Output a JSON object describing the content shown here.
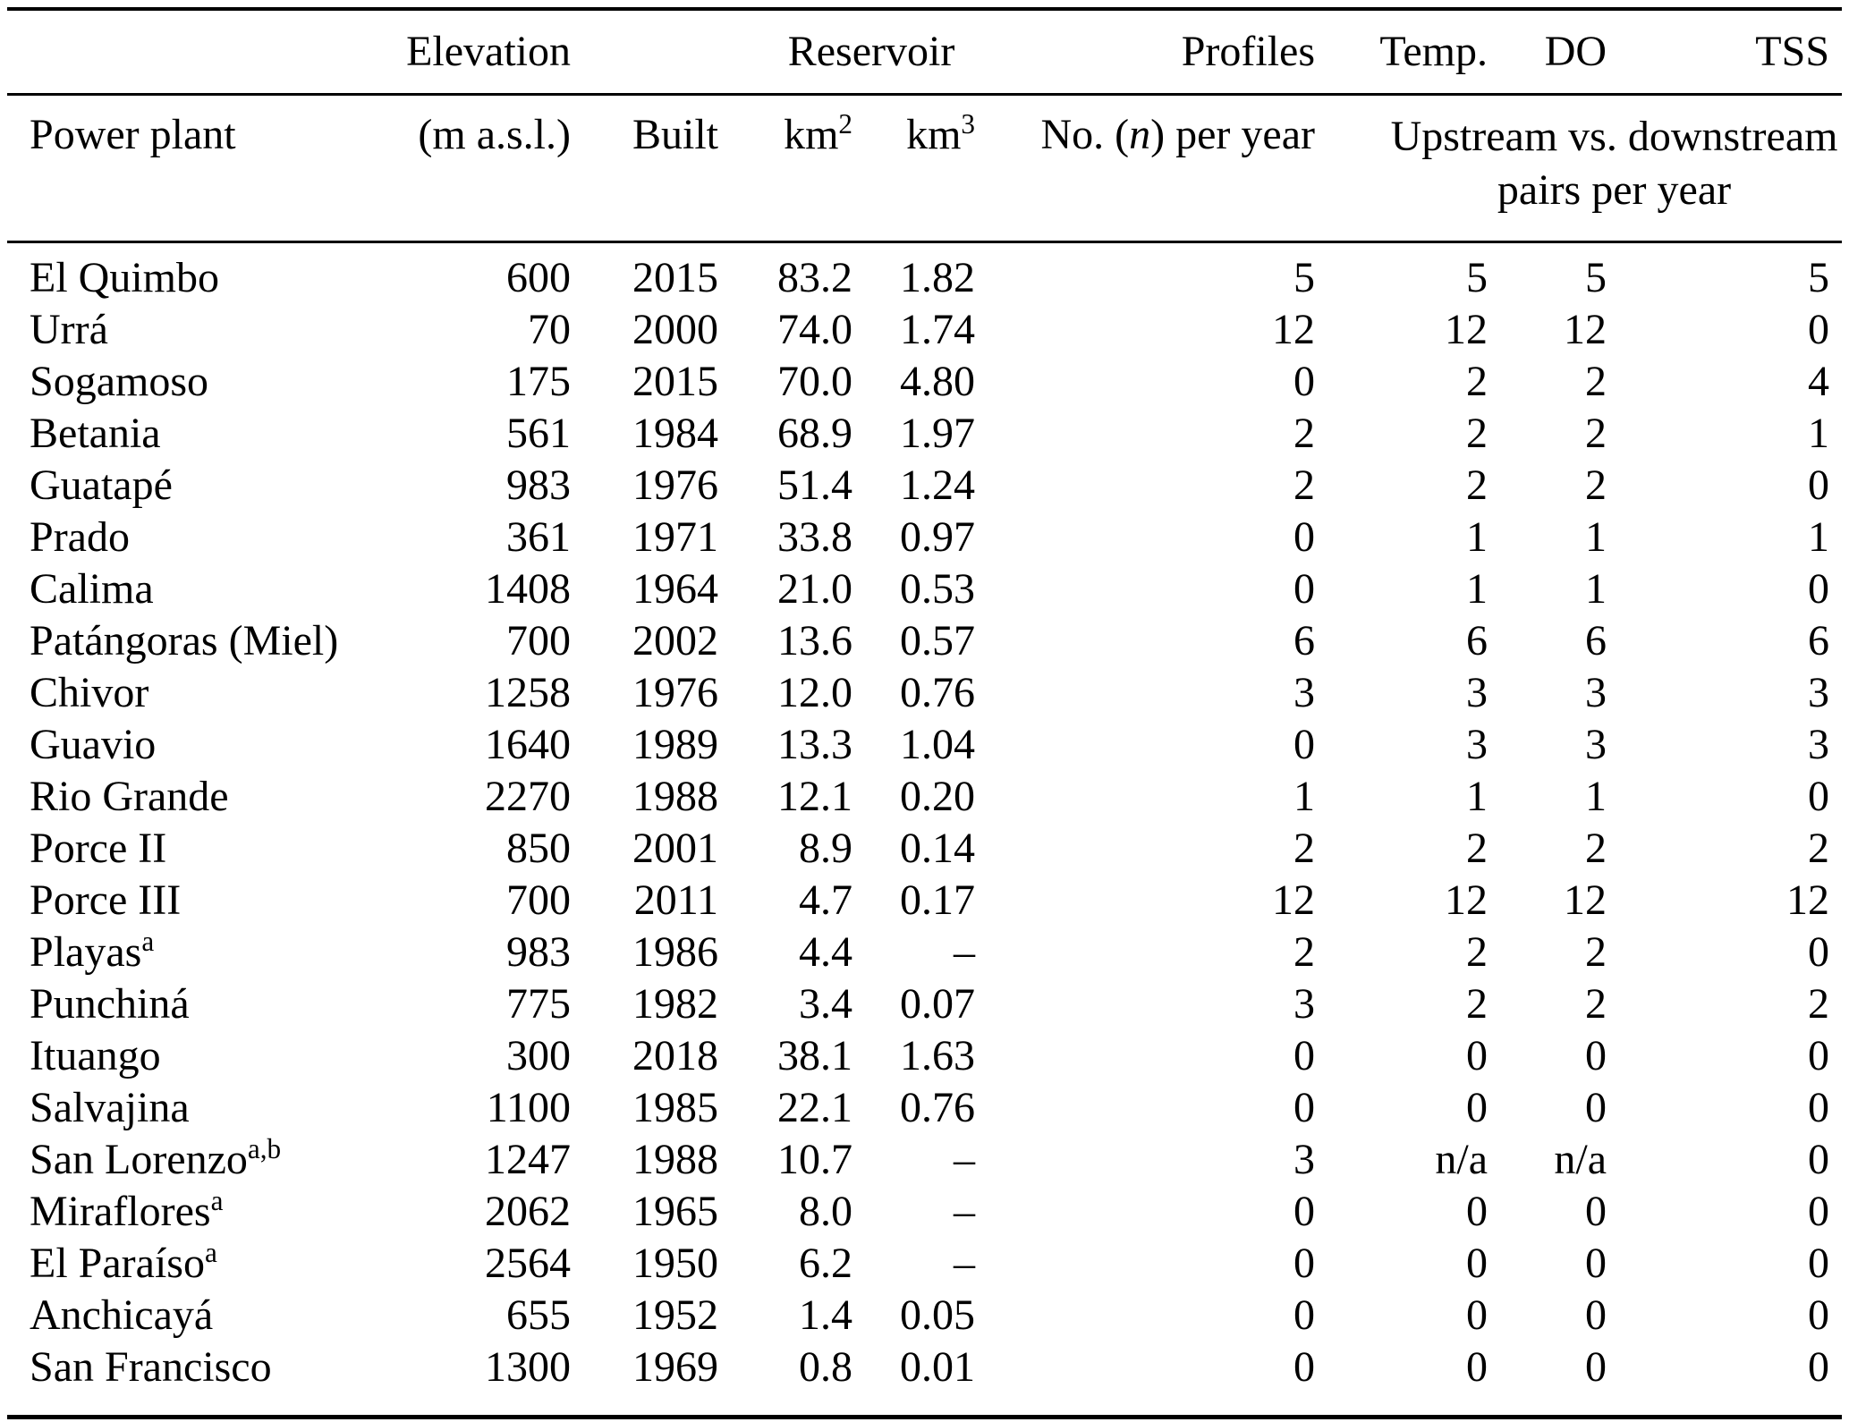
{
  "table": {
    "header_row1": {
      "elevation": "Elevation",
      "reservoir": "Reservoir",
      "profiles": "Profiles",
      "temp": "Temp.",
      "dissolved_oxygen": "DO",
      "tss": "TSS"
    },
    "header_row2": {
      "power_plant": "Power plant",
      "masl": "(m a.s.l.)",
      "built": "Built",
      "km2_base": "km",
      "km2_sup": "2",
      "km3_base": "km",
      "km3_sup": "3",
      "profiles_pre": "No. (",
      "profiles_n": "n",
      "profiles_post": ") per year",
      "updown_line1": "Upstream vs. downstream",
      "updown_line2": "pairs per year"
    },
    "rows": [
      {
        "name": "El Quimbo",
        "sup": "",
        "elevation": "600",
        "built": "2015",
        "km2": "83.2",
        "km3": "1.82",
        "profiles": "5",
        "temp": "5",
        "do": "5",
        "tss": "5"
      },
      {
        "name": "Urrá",
        "sup": "",
        "elevation": "70",
        "built": "2000",
        "km2": "74.0",
        "km3": "1.74",
        "profiles": "12",
        "temp": "12",
        "do": "12",
        "tss": "0"
      },
      {
        "name": "Sogamoso",
        "sup": "",
        "elevation": "175",
        "built": "2015",
        "km2": "70.0",
        "km3": "4.80",
        "profiles": "0",
        "temp": "2",
        "do": "2",
        "tss": "4"
      },
      {
        "name": "Betania",
        "sup": "",
        "elevation": "561",
        "built": "1984",
        "km2": "68.9",
        "km3": "1.97",
        "profiles": "2",
        "temp": "2",
        "do": "2",
        "tss": "1"
      },
      {
        "name": "Guatapé",
        "sup": "",
        "elevation": "983",
        "built": "1976",
        "km2": "51.4",
        "km3": "1.24",
        "profiles": "2",
        "temp": "2",
        "do": "2",
        "tss": "0"
      },
      {
        "name": "Prado",
        "sup": "",
        "elevation": "361",
        "built": "1971",
        "km2": "33.8",
        "km3": "0.97",
        "profiles": "0",
        "temp": "1",
        "do": "1",
        "tss": "1"
      },
      {
        "name": "Calima",
        "sup": "",
        "elevation": "1408",
        "built": "1964",
        "km2": "21.0",
        "km3": "0.53",
        "profiles": "0",
        "temp": "1",
        "do": "1",
        "tss": "0"
      },
      {
        "name": "Patángoras (Miel)",
        "sup": "",
        "elevation": "700",
        "built": "2002",
        "km2": "13.6",
        "km3": "0.57",
        "profiles": "6",
        "temp": "6",
        "do": "6",
        "tss": "6"
      },
      {
        "name": "Chivor",
        "sup": "",
        "elevation": "1258",
        "built": "1976",
        "km2": "12.0",
        "km3": "0.76",
        "profiles": "3",
        "temp": "3",
        "do": "3",
        "tss": "3"
      },
      {
        "name": "Guavio",
        "sup": "",
        "elevation": "1640",
        "built": "1989",
        "km2": "13.3",
        "km3": "1.04",
        "profiles": "0",
        "temp": "3",
        "do": "3",
        "tss": "3"
      },
      {
        "name": "Rio Grande",
        "sup": "",
        "elevation": "2270",
        "built": "1988",
        "km2": "12.1",
        "km3": "0.20",
        "profiles": "1",
        "temp": "1",
        "do": "1",
        "tss": "0"
      },
      {
        "name": "Porce II",
        "sup": "",
        "elevation": "850",
        "built": "2001",
        "km2": "8.9",
        "km3": "0.14",
        "profiles": "2",
        "temp": "2",
        "do": "2",
        "tss": "2"
      },
      {
        "name": "Porce III",
        "sup": "",
        "elevation": "700",
        "built": "2011",
        "km2": "4.7",
        "km3": "0.17",
        "profiles": "12",
        "temp": "12",
        "do": "12",
        "tss": "12"
      },
      {
        "name": "Playas",
        "sup": "a",
        "elevation": "983",
        "built": "1986",
        "km2": "4.4",
        "km3": "–",
        "profiles": "2",
        "temp": "2",
        "do": "2",
        "tss": "0"
      },
      {
        "name": "Punchiná",
        "sup": "",
        "elevation": "775",
        "built": "1982",
        "km2": "3.4",
        "km3": "0.07",
        "profiles": "3",
        "temp": "2",
        "do": "2",
        "tss": "2"
      },
      {
        "name": "Ituango",
        "sup": "",
        "elevation": "300",
        "built": "2018",
        "km2": "38.1",
        "km3": "1.63",
        "profiles": "0",
        "temp": "0",
        "do": "0",
        "tss": "0"
      },
      {
        "name": "Salvajina",
        "sup": "",
        "elevation": "1100",
        "built": "1985",
        "km2": "22.1",
        "km3": "0.76",
        "profiles": "0",
        "temp": "0",
        "do": "0",
        "tss": "0"
      },
      {
        "name": "San Lorenzo",
        "sup": "a,b",
        "elevation": "1247",
        "built": "1988",
        "km2": "10.7",
        "km3": "–",
        "profiles": "3",
        "temp": "n/a",
        "do": "n/a",
        "tss": "0"
      },
      {
        "name": "Miraflores",
        "sup": "a",
        "elevation": "2062",
        "built": "1965",
        "km2": "8.0",
        "km3": "–",
        "profiles": "0",
        "temp": "0",
        "do": "0",
        "tss": "0"
      },
      {
        "name": "El Paraíso",
        "sup": "a",
        "elevation": "2564",
        "built": "1950",
        "km2": "6.2",
        "km3": "–",
        "profiles": "0",
        "temp": "0",
        "do": "0",
        "tss": "0"
      },
      {
        "name": "Anchicayá",
        "sup": "",
        "elevation": "655",
        "built": "1952",
        "km2": "1.4",
        "km3": "0.05",
        "profiles": "0",
        "temp": "0",
        "do": "0",
        "tss": "0"
      },
      {
        "name": "San Francisco",
        "sup": "",
        "elevation": "1300",
        "built": "1969",
        "km2": "0.8",
        "km3": "0.01",
        "profiles": "0",
        "temp": "0",
        "do": "0",
        "tss": "0"
      }
    ]
  }
}
